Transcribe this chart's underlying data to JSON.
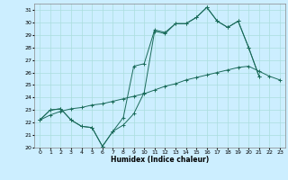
{
  "title": "",
  "xlabel": "Humidex (Indice chaleur)",
  "ylabel": "",
  "bg_color": "#cceeff",
  "grid_color": "#aadddd",
  "line_color": "#1a6b5a",
  "xlim": [
    -0.5,
    23.5
  ],
  "ylim": [
    20,
    31.5
  ],
  "yticks": [
    20,
    21,
    22,
    23,
    24,
    25,
    26,
    27,
    28,
    29,
    30,
    31
  ],
  "xticks": [
    0,
    1,
    2,
    3,
    4,
    5,
    6,
    7,
    8,
    9,
    10,
    11,
    12,
    13,
    14,
    15,
    16,
    17,
    18,
    19,
    20,
    21,
    22,
    23
  ],
  "line1_x": [
    0,
    1,
    2,
    3,
    4,
    5,
    6,
    7,
    8,
    9,
    10,
    11,
    12,
    13,
    14,
    15,
    16,
    17,
    18,
    19,
    20,
    21
  ],
  "line1_y": [
    22.2,
    23.0,
    23.1,
    22.2,
    21.7,
    21.6,
    20.1,
    21.3,
    21.8,
    22.7,
    24.4,
    29.3,
    29.1,
    29.9,
    29.9,
    30.4,
    31.2,
    30.1,
    29.6,
    30.1,
    28.0,
    25.7
  ],
  "line2_x": [
    0,
    1,
    2,
    3,
    4,
    5,
    6,
    7,
    8,
    9,
    10,
    11,
    12,
    13,
    14,
    15,
    16,
    17,
    18,
    19,
    20,
    21,
    22,
    23
  ],
  "line2_y": [
    22.2,
    22.6,
    22.9,
    23.1,
    23.2,
    23.4,
    23.5,
    23.7,
    23.9,
    24.1,
    24.3,
    24.6,
    24.9,
    25.1,
    25.4,
    25.6,
    25.8,
    26.0,
    26.2,
    26.4,
    26.5,
    26.1,
    25.7,
    25.4
  ],
  "line3_x": [
    0,
    1,
    2,
    3,
    4,
    5,
    6,
    7,
    8,
    9,
    10,
    11,
    12,
    13,
    14,
    15,
    16,
    17,
    18,
    19,
    20,
    21
  ],
  "line3_y": [
    22.2,
    23.0,
    23.1,
    22.2,
    21.7,
    21.6,
    20.1,
    21.3,
    22.4,
    26.5,
    26.7,
    29.4,
    29.2,
    29.9,
    29.9,
    30.4,
    31.2,
    30.1,
    29.6,
    30.1,
    28.0,
    25.7
  ]
}
